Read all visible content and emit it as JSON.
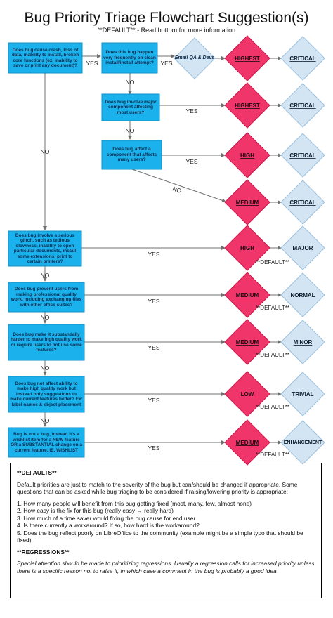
{
  "title": "Bug Priority Triage Flowchart Suggestion(s)",
  "subtitle": "**DEFAULT**  - Read bottom for more information",
  "colors": {
    "question_fill": "#1ab1ec",
    "question_stroke": "#1590c4",
    "priority_fill": "#f0356b",
    "priority_stroke": "#c81a4c",
    "severity_fill": "#d3e5f3",
    "severity_stroke": "#9cc1df",
    "line": "#707070"
  },
  "questions": {
    "q_crash": "Does bug cause crash, loss of data, inability to install, broken core functions (ex. inability to save or print any document)?",
    "q_frequent": "Does this bug happen very frequently on clean install/install attempt?",
    "q_major_component": "Does bug involve major component affecting most users?",
    "q_component": "Does bug affect a component that affects many users?",
    "q_glitch": "Does bug involve a serious glitch, such as tedious slowness, inability to open particular documents, install some extensions, print to certain printers?",
    "q_prevent": "Does bug prevent users from making professional quality work, including exchanging files with other office suites?",
    "q_harder": "Does bug make it substantially harder to make high quality work or require users to not use some features?",
    "q_not_affect": "Does bug not affect ability to make high quality work but instead only suggestions to make current features better? Ex: label names & object placement",
    "q_notbug": "Bug is not a bug, instead it's a wishlist item for a NEW feature OR a SUBSTANTIAL change on a current feature. IE. WISHLIST"
  },
  "email_qa": "Email QA & Devs",
  "yes": "YES",
  "no": "NO",
  "default_marker": "**DEFAULT**",
  "priorities": {
    "p1": "HIGHEST",
    "p2": "HIGHEST",
    "p3": "HIGH",
    "p4": "MEDIUM",
    "p5": "HIGH",
    "p6": "MEDIUM",
    "p7": "MEDIUM",
    "p8": "LOW",
    "p9": "MEDIUM"
  },
  "severities": {
    "s1": "CRITICAL",
    "s2": "CRITICAL",
    "s3": "CRITICAL",
    "s4": "CRITICAL",
    "s5": "MAJOR",
    "s6": "NORMAL",
    "s7": "MINOR",
    "s8": "TRIVIAL",
    "s9": "ENHANCEMENT"
  },
  "notes": {
    "defaults_heading": "**DEFAULTS**",
    "defaults_intro": "Default priorities are just to match to the severity of the bug but can/should be changed if appropriate. Some questions that can be asked while bug triaging to be considered if raising/lowering priority is appropriate:",
    "items": [
      "1. How many people will benefit from this bug getting fixed (most, many, few, almost none)",
      "2. How easy is the fix for this bug (really easy → really hard)",
      "3. How much of a time saver would fixing the bug cause for end user.",
      "4. Is there currently a workaround? If so, how hard is the workaround?",
      "5. Does the bug reflect poorly on LibreOffice to the community (example might be a simple typo that should be fixed)"
    ],
    "regressions_heading": "**REGRESSIONS**",
    "regressions_text": "Special attention should be made to prioritizing regressions. Usually a regression calls for increased priority unless there is a specific reason not to raise it, in which case a comment in the bug is probably a good idea"
  }
}
